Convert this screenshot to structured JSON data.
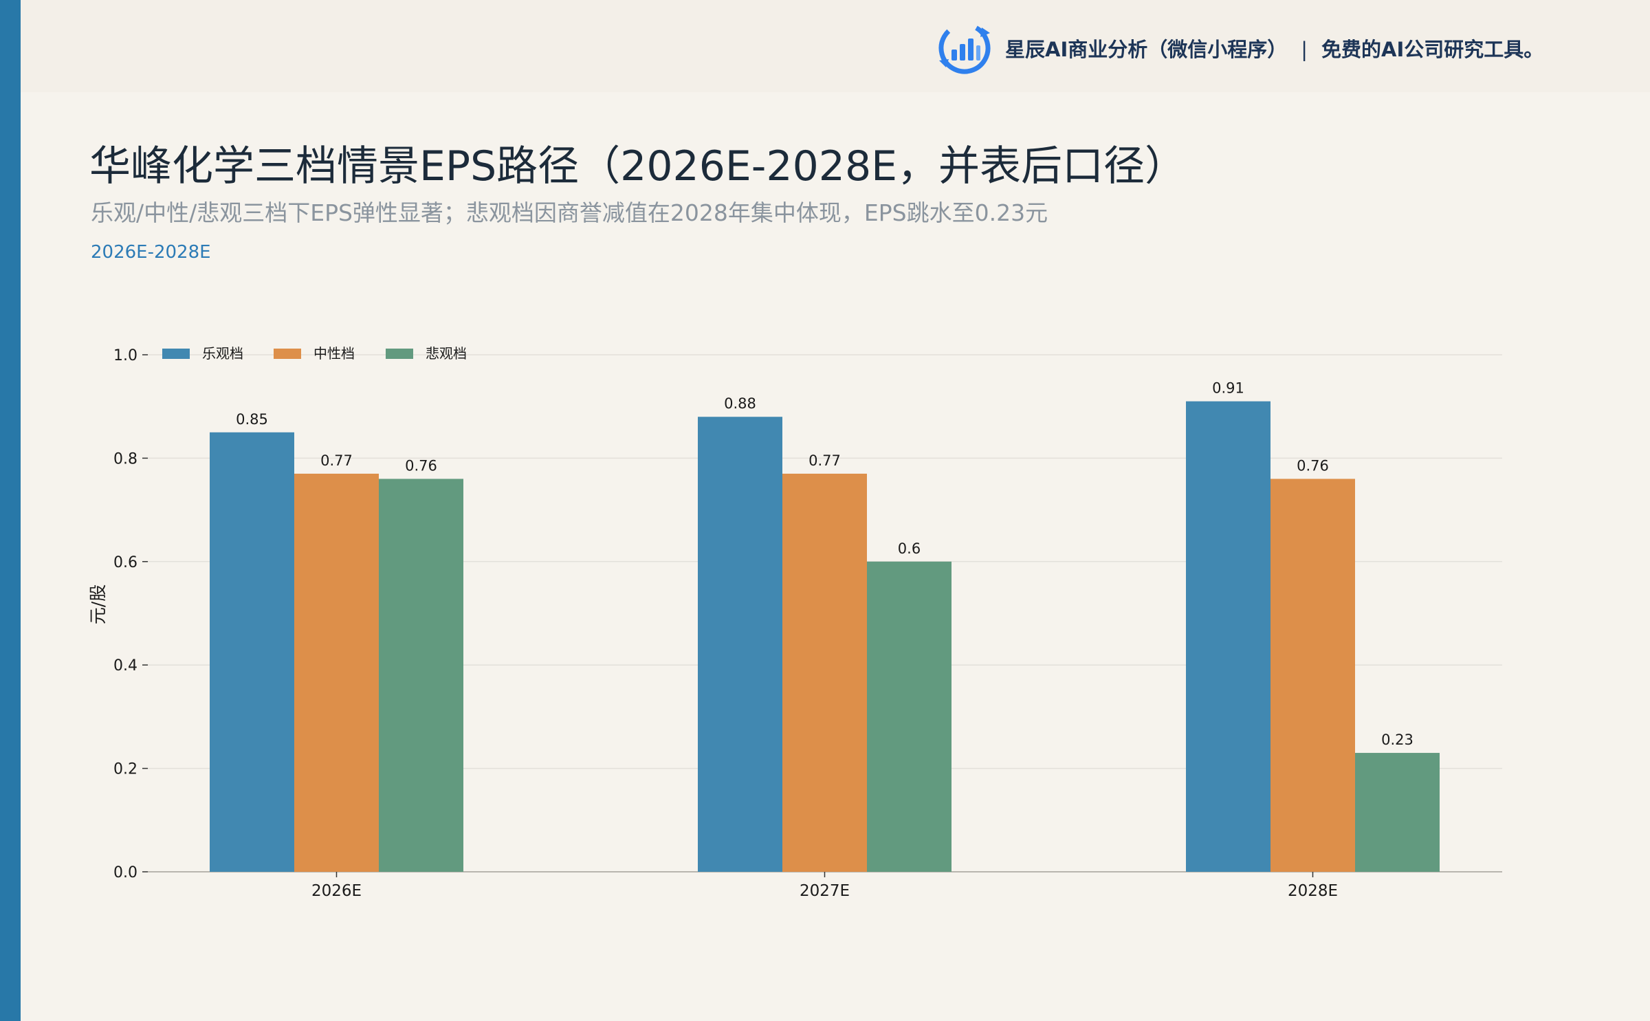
{
  "brand": {
    "name": "星辰AI商业分析（微信小程序）",
    "separator": "|",
    "tagline": "免费的AI公司研究工具。",
    "logo_icon": "bar-chart-refresh-icon"
  },
  "header": {
    "title": "华峰化学三档情景EPS路径（2026E-2028E，并表后口径）",
    "subtitle": "乐观/中性/悲观三档下EPS弹性显著；悲观档因商誉减值在2028年集中体现，EPS跳水至0.23元",
    "period": "2026E-2028E"
  },
  "colors": {
    "accent_bar": "#2878a8",
    "period_text": "#2c7bb6",
    "series": [
      "#4188b1",
      "#dd8f4a",
      "#629a7f"
    ],
    "grid": "#e3e0da",
    "axis": "#b8b5ae"
  },
  "chart_data": {
    "type": "bar",
    "title": "",
    "xlabel": "",
    "ylabel": "元/股",
    "categories": [
      "2026E",
      "2027E",
      "2028E"
    ],
    "series": [
      {
        "name": "乐观档",
        "values": [
          0.85,
          0.88,
          0.91
        ]
      },
      {
        "name": "中性档",
        "values": [
          0.77,
          0.77,
          0.76
        ]
      },
      {
        "name": "悲观档",
        "values": [
          0.76,
          0.6,
          0.23
        ]
      }
    ],
    "data_labels": [
      [
        "0.85",
        "0.88",
        "0.91"
      ],
      [
        "0.77",
        "0.77",
        "0.76"
      ],
      [
        "0.76",
        "0.6",
        "0.23"
      ]
    ],
    "yticks": [
      "0.0",
      "0.2",
      "0.4",
      "0.6",
      "0.8",
      "1.0"
    ],
    "ylim": [
      0,
      1.0
    ],
    "grid": true,
    "legend_position": "top-left"
  }
}
